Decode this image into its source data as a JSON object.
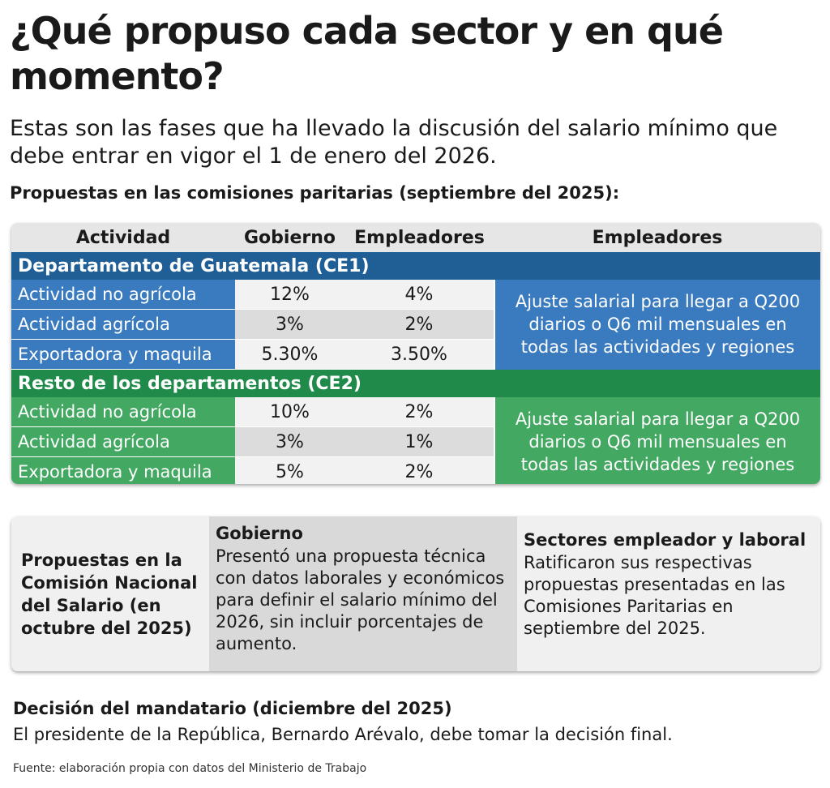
{
  "title": "¿Qué propuso cada sector y en qué momento?",
  "subtitle": "Estas son las fases que ha llevado la discusión del salario mínimo que debe entrar en vigor el 1 de enero del 2026.",
  "section1": "Propuestas en las comisiones paritarias (septiembre del 2025):",
  "table": {
    "headers": [
      "Actividad",
      "Gobierno",
      "Empleadores",
      "Empleadores"
    ],
    "groups": [
      {
        "title": "Departamento de Guatemala (CE1)",
        "rows": [
          [
            "Actividad no agrícola",
            "12%",
            "4%"
          ],
          [
            "Actividad agrícola",
            "3%",
            "2%"
          ],
          [
            "Exportadora y maquila",
            "5.30%",
            "3.50%"
          ]
        ],
        "note": "Ajuste salarial para llegar a Q200 diarios o Q6 mil mensuales en todas las actividades y regiones"
      },
      {
        "title": "Resto de los departamentos (CE2)",
        "rows": [
          [
            "Actividad no agrícola",
            "10%",
            "2%"
          ],
          [
            "Actividad agrícola",
            "3%",
            "1%"
          ],
          [
            "Exportadora y maquila",
            "5%",
            "2%"
          ]
        ],
        "note": "Ajuste salarial para llegar a Q200 diarios o Q6 mil mensuales en todas las actividades y regiones"
      }
    ]
  },
  "section2": {
    "label": "Propuestas en la Comisión Nacional del Salario (en octubre del 2025)",
    "gobierno": {
      "title": "Gobierno",
      "text": "Presentó una propuesta técnica con datos laborales y económicos para definir el salario mínimo del 2026, sin incluir porcentajes de aumento."
    },
    "sectores": {
      "title": "Sectores empleador y laboral",
      "text": "Ratificaron sus respectivas propuestas presentadas en las Comisiones Paritarias en septiembre del 2025."
    }
  },
  "decision": {
    "title": "Decisión del mandatario (diciembre del 2025)",
    "text": "El presidente de la República, Bernardo Arévalo, debe tomar la decisión final."
  },
  "source": "Fuente: elaboración propia con datos del Ministerio de Trabajo"
}
